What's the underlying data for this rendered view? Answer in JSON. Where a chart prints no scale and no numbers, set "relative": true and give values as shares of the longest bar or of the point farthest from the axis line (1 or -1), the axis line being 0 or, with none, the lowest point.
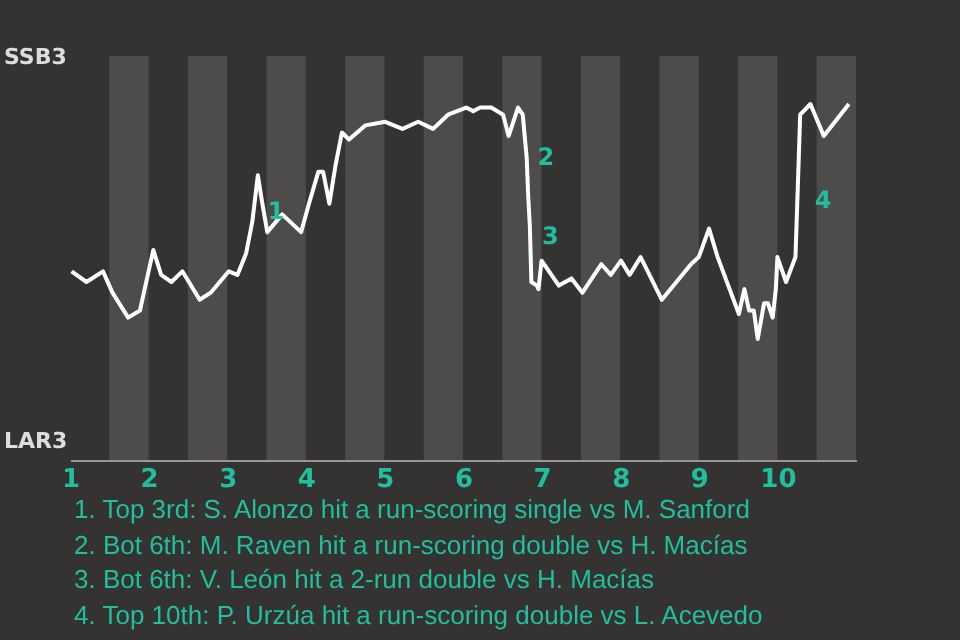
{
  "chart_data": {
    "type": "line",
    "relative": true,
    "x": [
      1.02,
      1.21,
      1.42,
      1.54,
      1.74,
      1.89,
      1.99,
      2.06,
      2.16,
      2.29,
      2.43,
      2.65,
      2.79,
      3.02,
      3.13,
      3.24,
      3.32,
      3.39,
      3.44,
      3.51,
      3.7,
      3.94,
      4.04,
      4.16,
      4.22,
      4.3,
      4.38,
      4.46,
      4.55,
      4.76,
      5.01,
      5.23,
      5.43,
      5.62,
      5.81,
      6.04,
      6.13,
      6.22,
      6.36,
      6.51,
      6.58,
      6.7,
      6.76,
      6.81,
      6.83,
      6.85,
      6.87,
      6.94,
      6.96,
      7.0,
      7.22,
      7.38,
      7.52,
      7.76,
      7.88,
      8.01,
      8.12,
      8.26,
      8.53,
      8.9,
      9.0,
      9.13,
      9.24,
      9.51,
      9.58,
      9.64,
      9.7,
      9.75,
      9.83,
      9.88,
      9.94,
      9.98,
      10.0,
      10.11,
      10.23,
      10.29,
      10.42,
      10.59,
      10.91
    ],
    "series": [
      {
        "color": "#ffffff",
        "values": [
          0.53,
          0.5,
          0.53,
          0.47,
          0.4,
          0.42,
          0.52,
          0.59,
          0.52,
          0.5,
          0.53,
          0.45,
          0.47,
          0.53,
          0.52,
          0.58,
          0.67,
          0.8,
          0.73,
          0.64,
          0.69,
          0.64,
          0.72,
          0.81,
          0.81,
          0.72,
          0.83,
          0.92,
          0.9,
          0.94,
          0.95,
          0.93,
          0.95,
          0.93,
          0.97,
          0.99,
          0.98,
          0.99,
          0.99,
          0.97,
          0.91,
          0.99,
          0.97,
          0.85,
          0.74,
          0.66,
          0.5,
          0.49,
          0.48,
          0.56,
          0.49,
          0.51,
          0.47,
          0.55,
          0.52,
          0.56,
          0.52,
          0.57,
          0.45,
          0.55,
          0.57,
          0.65,
          0.57,
          0.41,
          0.48,
          0.42,
          0.42,
          0.34,
          0.44,
          0.44,
          0.4,
          0.48,
          0.57,
          0.5,
          0.57,
          0.97,
          1,
          0.91,
          1
        ]
      }
    ],
    "xlim": [
      1,
      11
    ],
    "xticks": [
      1,
      2,
      3,
      4,
      5,
      6,
      7,
      8,
      9,
      10
    ],
    "bands": [
      {
        "axis": "x",
        "from": 1.5,
        "to": 2,
        "color": "#4e4c4a"
      },
      {
        "axis": "x",
        "from": 2.5,
        "to": 3,
        "color": "#4e4c4a"
      },
      {
        "axis": "x",
        "from": 3.5,
        "to": 4,
        "color": "#4e4c4a"
      },
      {
        "axis": "x",
        "from": 4.5,
        "to": 5,
        "color": "#4e4c4a"
      },
      {
        "axis": "x",
        "from": 5.5,
        "to": 6,
        "color": "#4e4c4a"
      },
      {
        "axis": "x",
        "from": 6.5,
        "to": 7,
        "color": "#4e4c4a"
      },
      {
        "axis": "x",
        "from": 7.5,
        "to": 8,
        "color": "#4e4c4a"
      },
      {
        "axis": "x",
        "from": 8.5,
        "to": 9,
        "color": "#4e4c4a"
      },
      {
        "axis": "x",
        "from": 9.5,
        "to": 10,
        "color": "#4e4c4a"
      },
      {
        "axis": "x",
        "from": 10.5,
        "to": 11,
        "color": "#4e4c4a"
      }
    ],
    "annotations": [
      "SSB3",
      "LAR3",
      {
        "text": "1",
        "x": 3.44,
        "y": 0.7
      },
      {
        "text": "2",
        "x": 6.87,
        "y": 0.85
      },
      {
        "text": "3",
        "x": 6.93,
        "y": 0.63
      },
      {
        "text": "4",
        "x": 10.4,
        "y": 0.73
      },
      "1. Top 3rd: S. Alonzo hit a run-scoring single vs M. Sanford",
      "2. Bot 6th: M. Raven hit a run-scoring double vs H. Macías",
      "3. Bot 6th: V. León hit a 2-run double vs H. Macías",
      "4. Top 10th: P. Urzúa hit a run-scoring double vs L. Acevedo"
    ]
  }
}
